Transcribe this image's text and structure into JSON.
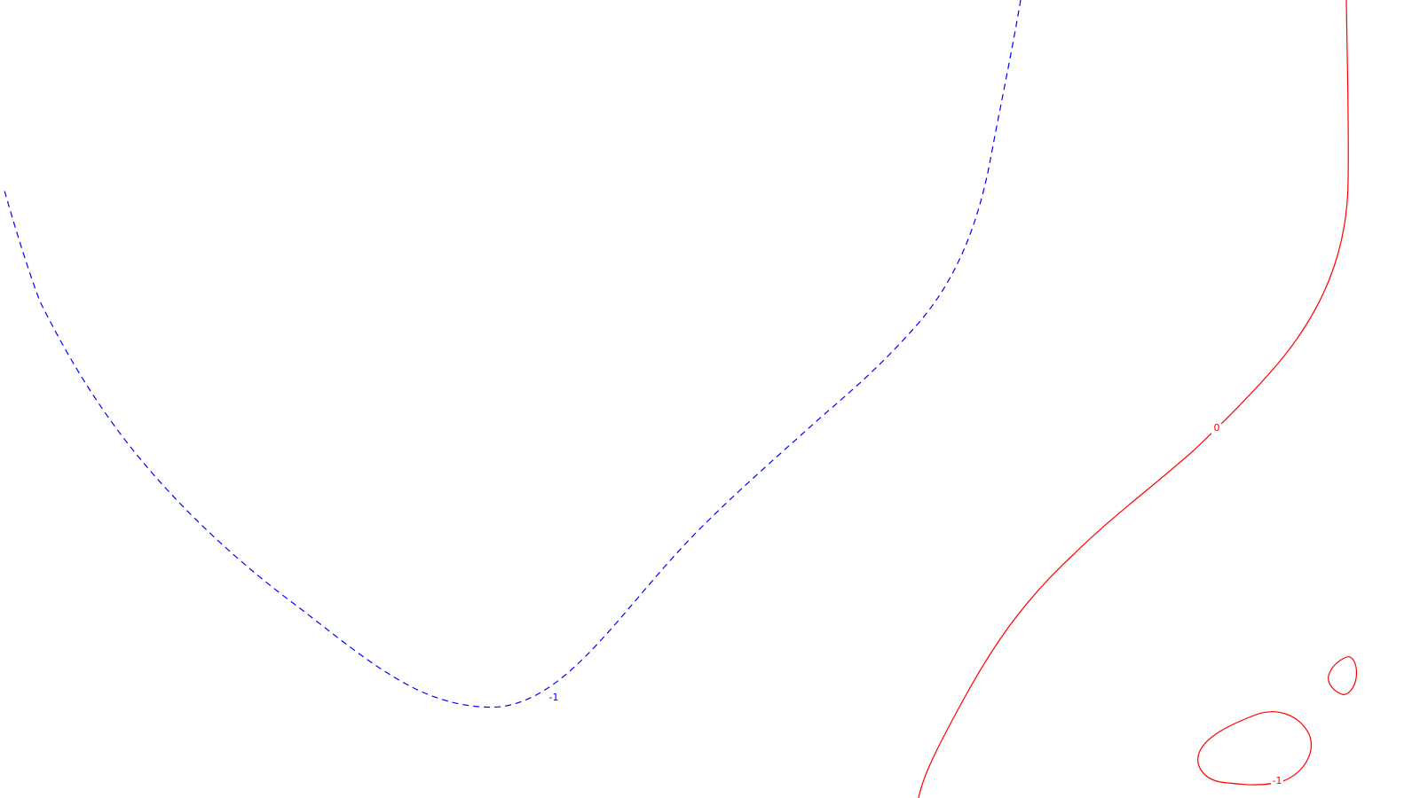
{
  "colors": {
    "background": "#ffffff",
    "dashed_contour": "#0000ff",
    "solid_contour": "#ff0000"
  },
  "contours": {
    "blue_dashed": {
      "level_label": "-1",
      "line_style": "dashed"
    },
    "red_main": {
      "level_label": "0",
      "line_style": "solid"
    },
    "red_loop": {
      "level_label": "-1",
      "line_style": "solid"
    },
    "red_small_loop": {
      "level_label": "",
      "line_style": "solid"
    }
  }
}
